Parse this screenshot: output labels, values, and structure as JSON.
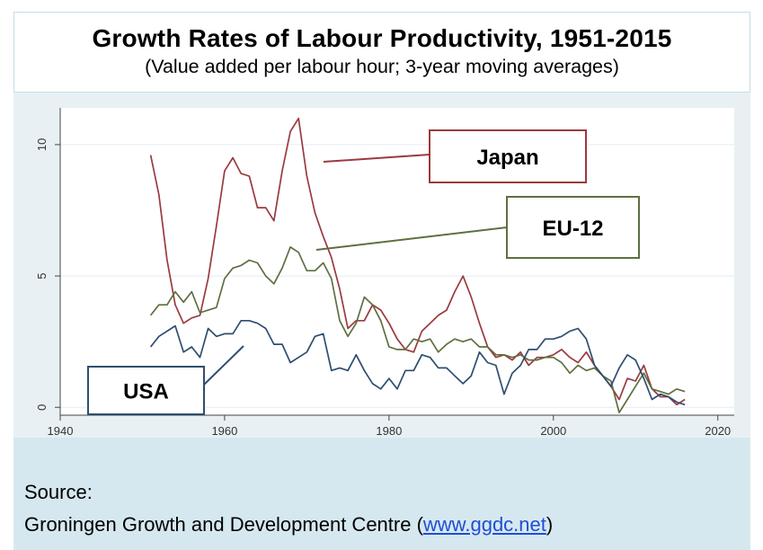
{
  "header": {
    "title": "Growth Rates of Labour Productivity, 1951-2015",
    "subtitle": "(Value added per labour hour; 3-year moving averages)"
  },
  "footer": {
    "source_label": "Source:",
    "source_text": "Groningen Growth and Development Centre (",
    "source_link": "www.ggdc.net",
    "source_close": ")"
  },
  "colors": {
    "japan": "#9b3a3f",
    "eu12": "#5e7040",
    "usa": "#2f4e70",
    "plot_bg": "#ffffff",
    "outer_bg": "#e8f0f4",
    "grid": "#e4ecf0"
  },
  "chart_data": {
    "type": "line",
    "title": "Growth Rates of Labour Productivity, 1951-2015",
    "subtitle": "(Value added per labour hour; 3-year moving averages)",
    "xlabel": "",
    "ylabel": "",
    "xlim": [
      1940,
      2022
    ],
    "ylim": [
      -0.3,
      11.4
    ],
    "xticks": [
      1940,
      1960,
      1980,
      2000,
      2020
    ],
    "yticks": [
      0,
      5,
      10
    ],
    "grid": true,
    "legend": "annotation boxes",
    "series": [
      {
        "name": "Japan",
        "color": "#9b3a3f",
        "x": [
          1951,
          1952,
          1953,
          1954,
          1955,
          1956,
          1957,
          1958,
          1959,
          1960,
          1961,
          1962,
          1963,
          1964,
          1965,
          1966,
          1967,
          1968,
          1969,
          1970,
          1971,
          1972,
          1973,
          1974,
          1975,
          1976,
          1977,
          1978,
          1979,
          1980,
          1981,
          1982,
          1983,
          1984,
          1985,
          1986,
          1987,
          1988,
          1989,
          1990,
          1991,
          1992,
          1993,
          1994,
          1995,
          1996,
          1997,
          1998,
          1999,
          2000,
          2001,
          2002,
          2003,
          2004,
          2005,
          2006,
          2007,
          2008,
          2009,
          2010,
          2011,
          2012,
          2013,
          2014,
          2015,
          2016
        ],
        "values": [
          9.6,
          8.1,
          5.6,
          3.9,
          3.2,
          3.4,
          3.5,
          4.9,
          6.9,
          9.0,
          9.5,
          8.9,
          8.8,
          7.6,
          7.6,
          7.1,
          9.0,
          10.5,
          11.0,
          8.8,
          7.4,
          6.5,
          5.7,
          4.5,
          3.0,
          3.3,
          3.3,
          3.9,
          3.7,
          3.2,
          2.6,
          2.2,
          2.1,
          2.9,
          3.2,
          3.5,
          3.7,
          4.4,
          5.0,
          4.2,
          3.2,
          2.3,
          1.9,
          2.0,
          1.8,
          2.1,
          1.6,
          1.9,
          1.9,
          2.0,
          2.2,
          1.9,
          1.7,
          2.1,
          1.6,
          1.2,
          0.8,
          0.3,
          1.1,
          1.0,
          1.6,
          0.7,
          0.4,
          0.4,
          0.1,
          0.3
        ]
      },
      {
        "name": "EU-12",
        "color": "#5e7040",
        "x": [
          1951,
          1952,
          1953,
          1954,
          1955,
          1956,
          1957,
          1958,
          1959,
          1960,
          1961,
          1962,
          1963,
          1964,
          1965,
          1966,
          1967,
          1968,
          1969,
          1970,
          1971,
          1972,
          1973,
          1974,
          1975,
          1976,
          1977,
          1978,
          1979,
          1980,
          1981,
          1982,
          1983,
          1984,
          1985,
          1986,
          1987,
          1988,
          1989,
          1990,
          1991,
          1992,
          1993,
          1994,
          1995,
          1996,
          1997,
          1998,
          1999,
          2000,
          2001,
          2002,
          2003,
          2004,
          2005,
          2006,
          2007,
          2008,
          2009,
          2010,
          2011,
          2012,
          2013,
          2014,
          2015,
          2016
        ],
        "values": [
          3.5,
          3.9,
          3.9,
          4.4,
          4.0,
          4.4,
          3.6,
          3.7,
          3.8,
          4.9,
          5.3,
          5.4,
          5.6,
          5.5,
          5.0,
          4.7,
          5.3,
          6.1,
          5.9,
          5.2,
          5.2,
          5.5,
          4.9,
          3.3,
          2.7,
          3.2,
          4.2,
          3.9,
          3.3,
          2.3,
          2.2,
          2.2,
          2.6,
          2.5,
          2.6,
          2.1,
          2.4,
          2.6,
          2.5,
          2.6,
          2.3,
          2.3,
          2.0,
          2.0,
          1.9,
          2.0,
          1.8,
          1.8,
          1.9,
          1.9,
          1.7,
          1.3,
          1.6,
          1.4,
          1.5,
          1.2,
          1.0,
          -0.2,
          0.3,
          0.8,
          1.3,
          0.7,
          0.6,
          0.5,
          0.7,
          0.6
        ]
      },
      {
        "name": "USA",
        "color": "#2f4e70",
        "x": [
          1951,
          1952,
          1953,
          1954,
          1955,
          1956,
          1957,
          1958,
          1959,
          1960,
          1961,
          1962,
          1963,
          1964,
          1965,
          1966,
          1967,
          1968,
          1969,
          1970,
          1971,
          1972,
          1973,
          1974,
          1975,
          1976,
          1977,
          1978,
          1979,
          1980,
          1981,
          1982,
          1983,
          1984,
          1985,
          1986,
          1987,
          1988,
          1989,
          1990,
          1991,
          1992,
          1993,
          1994,
          1995,
          1996,
          1997,
          1998,
          1999,
          2000,
          2001,
          2002,
          2003,
          2004,
          2005,
          2006,
          2007,
          2008,
          2009,
          2010,
          2011,
          2012,
          2013,
          2014,
          2015,
          2016
        ],
        "values": [
          2.3,
          2.7,
          2.9,
          3.1,
          2.1,
          2.3,
          1.9,
          3.0,
          2.7,
          2.8,
          2.8,
          3.3,
          3.3,
          3.2,
          3.0,
          2.4,
          2.4,
          1.7,
          1.9,
          2.1,
          2.7,
          2.8,
          1.4,
          1.5,
          1.4,
          2.0,
          1.4,
          0.9,
          0.7,
          1.1,
          0.7,
          1.4,
          1.4,
          2.0,
          1.9,
          1.5,
          1.5,
          1.2,
          0.9,
          1.2,
          2.1,
          1.7,
          1.6,
          0.5,
          1.3,
          1.6,
          2.2,
          2.2,
          2.6,
          2.6,
          2.7,
          2.9,
          3.0,
          2.6,
          1.6,
          1.2,
          0.8,
          1.5,
          2.0,
          1.8,
          1.1,
          0.3,
          0.5,
          0.4,
          0.2,
          0.1
        ]
      }
    ],
    "annotations": [
      {
        "label": "Japan",
        "series": "Japan",
        "pointer_x": 1970.5,
        "pointer_y": 9.3
      },
      {
        "label": "EU-12",
        "series": "EU-12",
        "pointer_x": 1970,
        "pointer_y": 5.9
      },
      {
        "label": "USA",
        "series": "USA",
        "pointer_x": 1961,
        "pointer_y": 2.2
      }
    ]
  }
}
